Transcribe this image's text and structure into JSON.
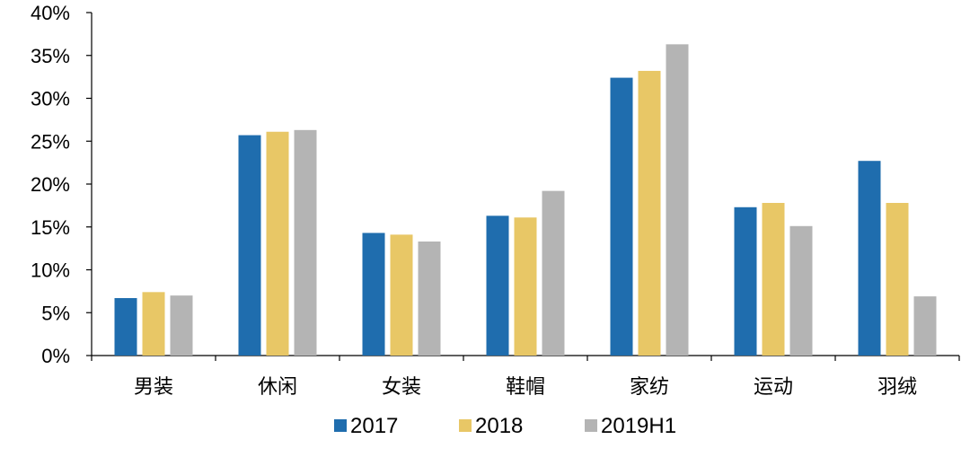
{
  "chart_data": {
    "type": "bar",
    "title": "",
    "xlabel": "",
    "ylabel": "",
    "categories": [
      "男装",
      "休闲",
      "女装",
      "鞋帽",
      "家纺",
      "运动",
      "羽绒"
    ],
    "series": [
      {
        "name": "2017",
        "color": "#1F6DAE",
        "values": [
          6.7,
          25.7,
          14.3,
          16.3,
          32.4,
          17.3,
          22.7
        ]
      },
      {
        "name": "2018",
        "color": "#E8C766",
        "values": [
          7.4,
          26.1,
          14.1,
          16.1,
          33.2,
          17.8,
          17.8
        ]
      },
      {
        "name": "2019H1",
        "color": "#B4B4B4",
        "values": [
          7.0,
          26.3,
          13.3,
          19.2,
          36.3,
          15.1,
          6.9
        ]
      }
    ],
    "ylim": [
      0,
      40
    ],
    "yticks": [
      0,
      5,
      10,
      15,
      20,
      25,
      30,
      35,
      40
    ],
    "ytick_labels": [
      "0%",
      "5%",
      "10%",
      "15%",
      "20%",
      "25%",
      "30%",
      "35%",
      "40%"
    ],
    "grid": false,
    "legend": "bottom"
  }
}
